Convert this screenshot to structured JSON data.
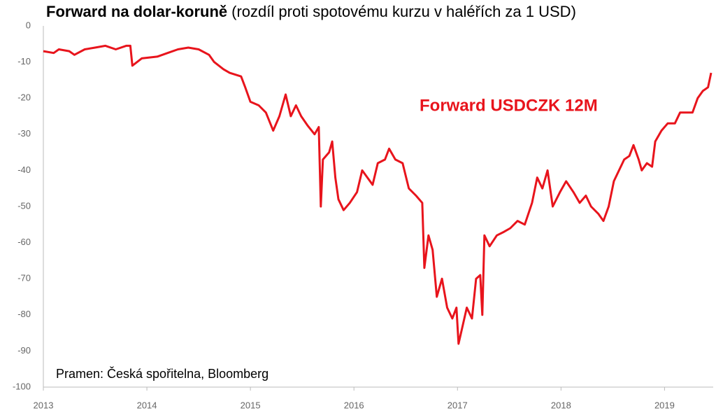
{
  "chart_data": {
    "type": "line",
    "title": "Forward na dolar-koruně",
    "subtitle": "(rozdíl proti spotovému kurzu v haléřích za 1 USD)",
    "annotation": "Forward USDCZK 12M",
    "source": "Pramen: Česká spořitelna, Bloomberg",
    "xlim": [
      2013,
      2019.47
    ],
    "xticks": [
      2013,
      2014,
      2015,
      2016,
      2017,
      2018,
      2019
    ],
    "ylim": [
      -100,
      0
    ],
    "yticks": [
      0,
      -10,
      -20,
      -30,
      -40,
      -50,
      -60,
      -70,
      -80,
      -90,
      -100
    ],
    "grid": false,
    "series": [
      {
        "name": "Forward USDCZK 12M",
        "color": "#e8141c",
        "x": [
          2013.0,
          2013.1,
          2013.15,
          2013.25,
          2013.3,
          2013.4,
          2013.5,
          2013.6,
          2013.7,
          2013.8,
          2013.84,
          2013.86,
          2013.95,
          2014.1,
          2014.2,
          2014.3,
          2014.4,
          2014.5,
          2014.6,
          2014.65,
          2014.74,
          2014.8,
          2014.91,
          2014.95,
          2015.0,
          2015.08,
          2015.15,
          2015.22,
          2015.28,
          2015.34,
          2015.39,
          2015.44,
          2015.49,
          2015.55,
          2015.62,
          2015.66,
          2015.68,
          2015.7,
          2015.76,
          2015.79,
          2015.82,
          2015.85,
          2015.9,
          2015.96,
          2016.03,
          2016.08,
          2016.13,
          2016.18,
          2016.23,
          2016.3,
          2016.34,
          2016.4,
          2016.47,
          2016.53,
          2016.6,
          2016.66,
          2016.68,
          2016.72,
          2016.76,
          2016.8,
          2016.85,
          2016.9,
          2016.95,
          2016.99,
          2017.01,
          2017.05,
          2017.09,
          2017.14,
          2017.18,
          2017.22,
          2017.24,
          2017.26,
          2017.31,
          2017.38,
          2017.45,
          2017.51,
          2017.58,
          2017.65,
          2017.72,
          2017.77,
          2017.82,
          2017.87,
          2017.92,
          2017.99,
          2018.05,
          2018.12,
          2018.18,
          2018.24,
          2018.29,
          2018.36,
          2018.41,
          2018.46,
          2018.51,
          2018.56,
          2018.61,
          2018.66,
          2018.7,
          2018.75,
          2018.78,
          2018.83,
          2018.88,
          2018.91,
          2018.97,
          2019.03,
          2019.1,
          2019.15,
          2019.2,
          2019.27,
          2019.32,
          2019.37,
          2019.42,
          2019.45
        ],
        "values": [
          -7,
          -7.5,
          -6.5,
          -7,
          -8,
          -6.5,
          -6,
          -5.5,
          -6.5,
          -5.5,
          -5.5,
          -11,
          -9,
          -8.5,
          -7.5,
          -6.5,
          -6,
          -6.5,
          -8,
          -10,
          -12,
          -13,
          -14,
          -17,
          -21,
          -22,
          -24,
          -29,
          -25,
          -19,
          -25,
          -22,
          -25,
          -27.5,
          -30,
          -28,
          -50,
          -37,
          -35,
          -32,
          -42,
          -48,
          -51,
          -49,
          -46,
          -40,
          -42,
          -44,
          -38,
          -37,
          -34,
          -37,
          -38,
          -45,
          -47,
          -49,
          -67,
          -58,
          -62,
          -75,
          -70,
          -78,
          -81,
          -78,
          -88,
          -83,
          -78,
          -81,
          -70,
          -69,
          -80,
          -58,
          -61,
          -58,
          -57,
          -56,
          -54,
          -55,
          -49,
          -42,
          -45,
          -40,
          -50,
          -46,
          -43,
          -46,
          -49,
          -47,
          -50,
          -52,
          -54,
          -50,
          -43,
          -40,
          -37,
          -36,
          -33,
          -37,
          -40,
          -38,
          -39,
          -32,
          -29,
          -27,
          -27,
          -24,
          -24,
          -24,
          -20,
          -18,
          -17,
          -13
        ]
      }
    ]
  }
}
